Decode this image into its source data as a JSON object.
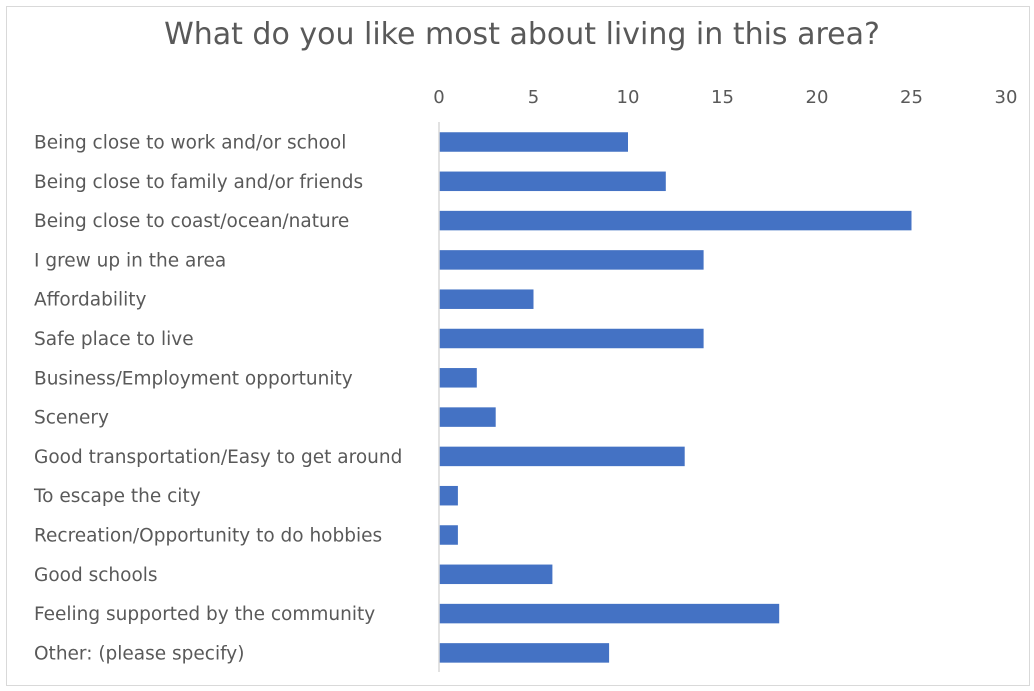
{
  "chart_data": {
    "type": "bar",
    "orientation": "horizontal",
    "title": "What do you like most about living in this area?",
    "categories": [
      "Being close to work and/or school",
      "Being close to family and/or friends",
      "Being close to coast/ocean/nature",
      "I grew up in the area",
      "Affordability",
      "Safe place to live",
      "Business/Employment opportunity",
      "Scenery",
      "Good transportation/Easy to get around",
      "To escape the city",
      "Recreation/Opportunity to do hobbies",
      "Good schools",
      "Feeling supported by the community",
      "Other: (please specify)"
    ],
    "values": [
      10,
      12,
      25,
      14,
      5,
      14,
      2,
      3,
      13,
      1,
      1,
      6,
      18,
      9
    ],
    "xlim": [
      0,
      30
    ],
    "ticks": [
      "0",
      "5",
      "10",
      "15",
      "20",
      "25",
      "30"
    ],
    "axis_position": "top",
    "grid": false,
    "legend": "none",
    "bar_color": "#4472c4"
  }
}
